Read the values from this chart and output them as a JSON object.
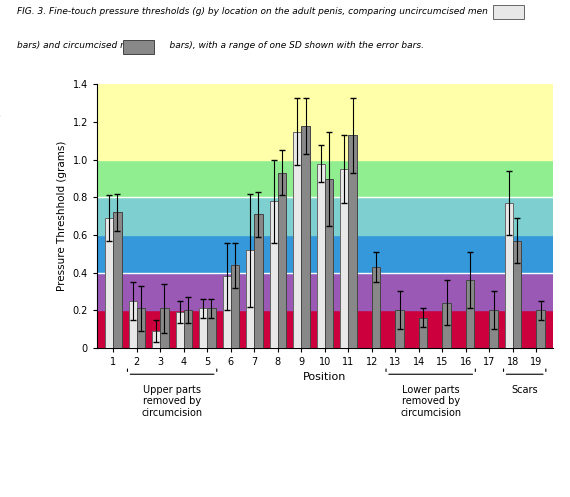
{
  "positions": [
    1,
    2,
    3,
    4,
    5,
    6,
    7,
    8,
    9,
    10,
    11,
    12,
    13,
    14,
    15,
    16,
    17,
    18,
    19
  ],
  "uncircumcised": [
    0.69,
    0.25,
    0.09,
    0.19,
    0.21,
    0.38,
    0.52,
    0.78,
    1.15,
    0.98,
    0.95,
    null,
    null,
    null,
    null,
    null,
    null,
    0.77,
    null
  ],
  "circumcised": [
    0.72,
    0.21,
    0.21,
    0.2,
    0.21,
    0.44,
    0.71,
    0.93,
    1.18,
    0.9,
    1.13,
    0.43,
    0.2,
    0.16,
    0.24,
    0.36,
    0.2,
    0.57,
    0.2
  ],
  "uncircumcised_err": [
    0.12,
    0.1,
    0.06,
    0.06,
    0.05,
    0.18,
    0.3,
    0.22,
    0.18,
    0.1,
    0.18,
    null,
    null,
    null,
    null,
    null,
    null,
    0.17,
    null
  ],
  "circumcised_err": [
    0.1,
    0.12,
    0.13,
    0.07,
    0.05,
    0.12,
    0.12,
    0.12,
    0.15,
    0.25,
    0.2,
    0.08,
    0.1,
    0.05,
    0.12,
    0.15,
    0.1,
    0.12,
    0.05
  ],
  "bg_bands": [
    {
      "ymin": 0.0,
      "ymax": 0.2,
      "color": "#cc003d"
    },
    {
      "ymin": 0.2,
      "ymax": 0.4,
      "color": "#9b59b6"
    },
    {
      "ymin": 0.4,
      "ymax": 0.6,
      "color": "#3498db"
    },
    {
      "ymin": 0.6,
      "ymax": 0.8,
      "color": "#7ecfcf"
    },
    {
      "ymin": 0.8,
      "ymax": 1.0,
      "color": "#90ee90"
    },
    {
      "ymin": 1.0,
      "ymax": 1.45,
      "color": "#ffffaa"
    }
  ],
  "hlines": [
    0.4,
    0.8
  ],
  "ylabel": "Pressure Threshhold (grams)",
  "xlabel": "Position",
  "ylim": [
    0,
    1.4
  ],
  "yticks": [
    0,
    0.2,
    0.4,
    0.6,
    0.8,
    1.0,
    1.2,
    1.4
  ],
  "bar_width": 0.35,
  "uncircumcised_color": "#e8e8e8",
  "circumcised_color": "#888888",
  "uncircumcised_edge": "#666666",
  "circumcised_edge": "#444444",
  "groups": [
    {
      "label": "Upper parts\nremoved by\ncircumcision",
      "xmin": 1.6,
      "xmax": 5.4
    },
    {
      "label": "Lower parts\nremoved by\ncircumcision",
      "xmin": 12.6,
      "xmax": 16.4
    },
    {
      "label": "Scars",
      "xmin": 17.6,
      "xmax": 19.4
    }
  ]
}
